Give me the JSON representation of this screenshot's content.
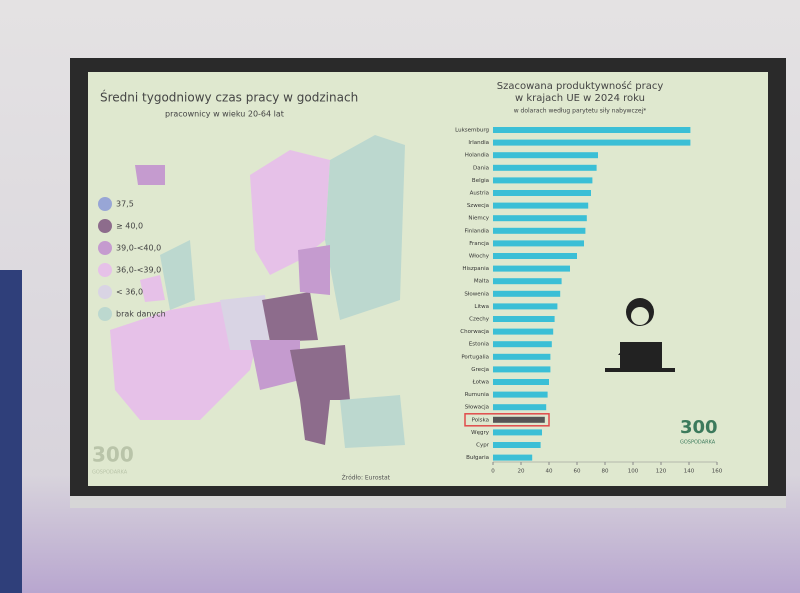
{
  "map": {
    "title": "Średni tygodniowy czas pracy w godzinach",
    "subtitle": "pracownicy w wieku 20-64 lat",
    "legend": [
      {
        "label": "37,5",
        "color": "#98a6d6"
      },
      {
        "label": "≥ 40,0",
        "color": "#8d6c8c"
      },
      {
        "label": "39,0-<40,0",
        "color": "#c59bcf"
      },
      {
        "label": "36,0-<39,0",
        "color": "#e6c1e8"
      },
      {
        "label": "< 36,0",
        "color": "#d9d4e4"
      },
      {
        "label": "brak danych",
        "color": "#bcd8cf"
      }
    ],
    "source": "Źródło: Eurostat"
  },
  "logo": {
    "number": "300",
    "name": "GOSPODARKA"
  },
  "chart_data": {
    "type": "bar",
    "orientation": "horizontal",
    "title": "Szacowana produktywność pracy w krajach UE w 2024 roku",
    "subtitle": "w dolarach według parytetu siły nabywczej*",
    "categories": [
      "Luksemburg",
      "Irlandia",
      "Holandia",
      "Dania",
      "Belgia",
      "Austria",
      "Szwecja",
      "Niemcy",
      "Finlandia",
      "Francja",
      "Włochy",
      "Hiszpania",
      "Malta",
      "Słowenia",
      "Litwa",
      "Czechy",
      "Chorwacja",
      "Estonia",
      "Portugalia",
      "Grecja",
      "Łotwa",
      "Rumunia",
      "Słowacja",
      "Polska",
      "Węgry",
      "Cypr",
      "Bułgaria"
    ],
    "values": [
      141,
      141,
      75,
      74,
      71,
      70,
      68,
      67,
      66,
      65,
      60,
      55,
      49,
      48,
      46,
      44,
      43,
      42,
      41,
      41,
      40,
      39,
      38,
      37,
      35,
      34,
      28
    ],
    "color": "#3bbfd6",
    "highlight": "Polska",
    "highlight_color": "#555555",
    "xlim": [
      0,
      160
    ],
    "xticks": [
      0,
      20,
      40,
      60,
      80,
      100,
      120,
      140,
      160
    ]
  }
}
